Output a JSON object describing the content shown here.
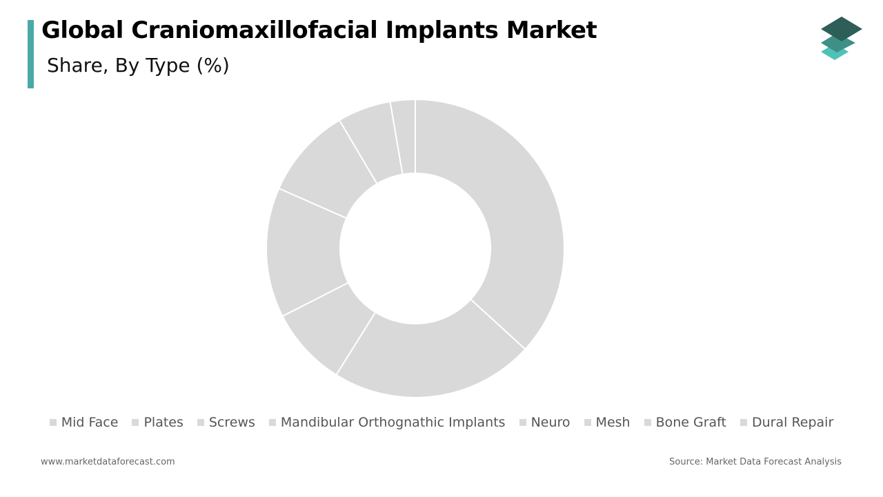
{
  "chart_data": {
    "type": "donut",
    "title": "Global Craniomaxillofacial Implants Market",
    "subtitle": "Share, By Type (%)",
    "categories": [
      "Mid Face",
      "Plates",
      "Screws",
      "Mandibular Orthognathic Implants",
      "Neuro",
      "Mesh",
      "Bone Graft",
      "Dural Repair"
    ],
    "values": [
      36.8,
      22.1,
      8.6,
      14.1,
      9.9,
      5.8,
      2.7,
      0
    ],
    "color": "#d9d9d9"
  },
  "footer": {
    "website": "www.marketdataforecast.com",
    "source": "Source: Market Data Forecast Analysis"
  }
}
